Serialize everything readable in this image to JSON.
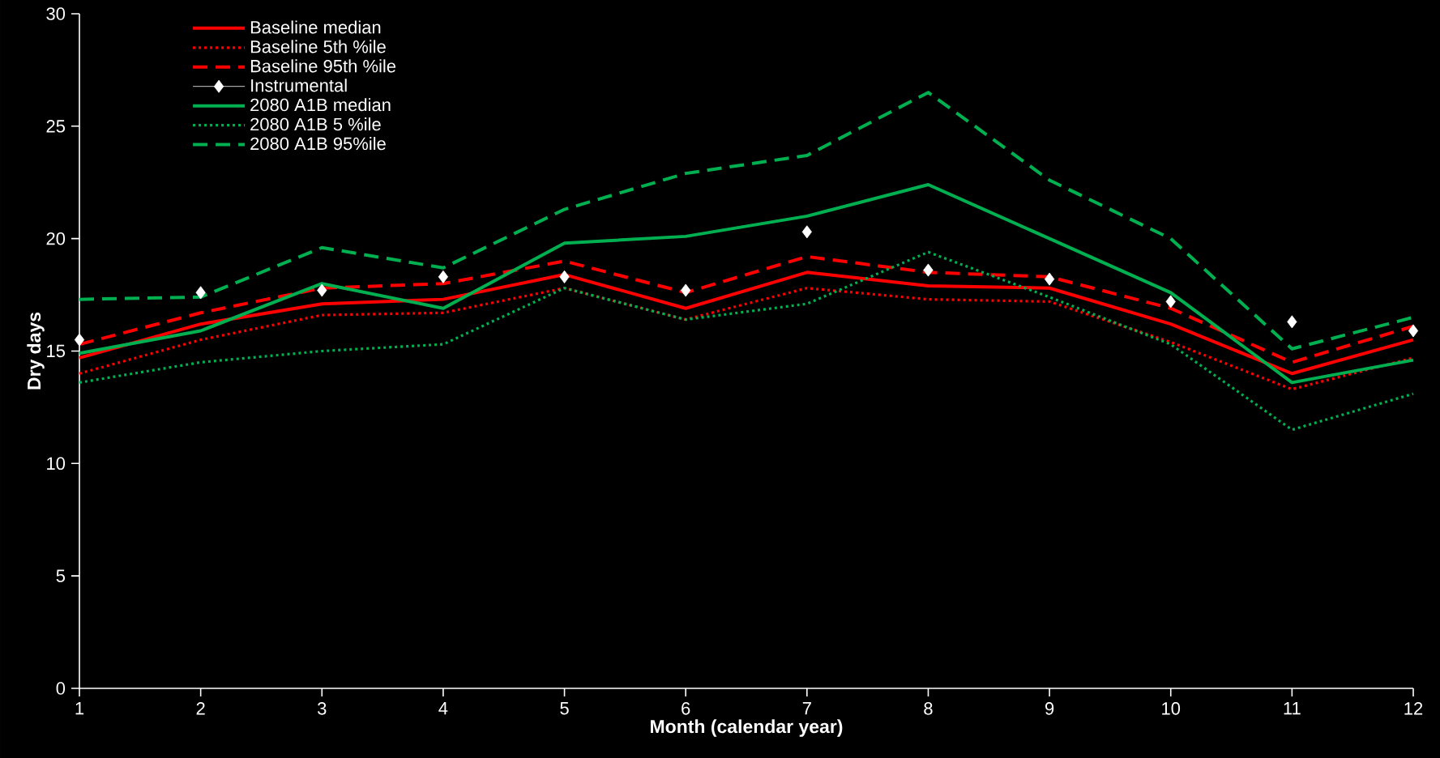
{
  "chart_data": {
    "type": "line",
    "xlabel": "Month (calendar year)",
    "ylabel": "Dry days",
    "x": [
      1,
      2,
      3,
      4,
      5,
      6,
      7,
      8,
      9,
      10,
      11,
      12
    ],
    "xlim": [
      1,
      12
    ],
    "xticks": [
      1,
      2,
      3,
      4,
      5,
      6,
      7,
      8,
      9,
      10,
      11,
      12
    ],
    "ylim": [
      0,
      30
    ],
    "yticks": [
      0,
      5,
      10,
      15,
      20,
      25,
      30
    ],
    "legend": "top left",
    "series": [
      {
        "name": "Baseline median",
        "color": "#ff0000",
        "line_style": "solid",
        "marker": "none",
        "values": [
          14.7,
          16.2,
          17.1,
          17.3,
          18.4,
          16.9,
          18.5,
          17.9,
          17.8,
          16.2,
          14.0,
          15.5
        ]
      },
      {
        "name": "Baseline 5th %ile",
        "color": "#ff0000",
        "line_style": "dotted",
        "marker": "none",
        "values": [
          14.0,
          15.5,
          16.6,
          16.7,
          17.8,
          16.4,
          17.8,
          17.3,
          17.2,
          15.4,
          13.3,
          14.7
        ]
      },
      {
        "name": "Baseline 95th %ile",
        "color": "#ff0000",
        "line_style": "dashed",
        "marker": "none",
        "values": [
          15.3,
          16.7,
          17.8,
          18.0,
          19.0,
          17.6,
          19.2,
          18.5,
          18.3,
          16.9,
          14.5,
          16.1
        ]
      },
      {
        "name": "Instrumental",
        "type": "scatter",
        "color": "#ffffff",
        "marker": "diamond",
        "values": [
          15.5,
          17.6,
          17.7,
          18.3,
          18.3,
          17.7,
          20.3,
          18.6,
          18.2,
          17.2,
          16.3,
          15.9
        ]
      },
      {
        "name": "2080 A1B median",
        "color": "#00b050",
        "line_style": "solid",
        "marker": "none",
        "values": [
          14.9,
          15.9,
          18.0,
          16.9,
          19.8,
          20.1,
          21.0,
          22.4,
          20.0,
          17.6,
          13.6,
          14.6
        ]
      },
      {
        "name": "2080 A1B 5 %ile",
        "color": "#00b050",
        "line_style": "dotted",
        "marker": "none",
        "values": [
          13.6,
          14.5,
          15.0,
          15.3,
          17.8,
          16.4,
          17.1,
          19.4,
          17.4,
          15.3,
          11.5,
          13.1
        ]
      },
      {
        "name": "2080 A1B 95%ile",
        "color": "#00b050",
        "line_style": "dashed",
        "marker": "none",
        "values": [
          17.3,
          17.4,
          19.6,
          18.7,
          21.3,
          22.9,
          23.7,
          26.5,
          22.6,
          20.0,
          15.1,
          16.5
        ]
      }
    ]
  }
}
